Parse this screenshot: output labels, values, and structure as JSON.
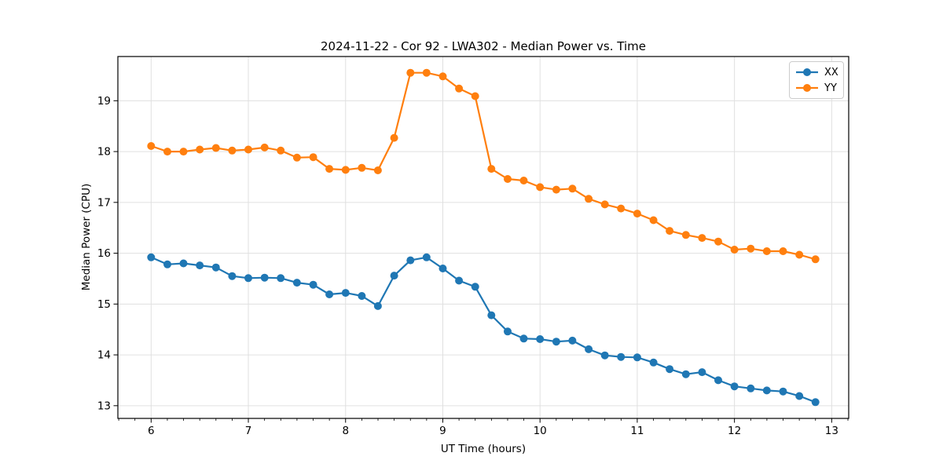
{
  "chart_data": {
    "type": "line",
    "title": "2024-11-22 - Cor 92 - LWA302 - Median Power vs. Time",
    "xlabel": "UT Time (hours)",
    "ylabel": "Median Power (CPU)",
    "xlim": [
      5.658,
      13.175
    ],
    "ylim": [
      12.75,
      19.87
    ],
    "x_ticks": [
      6,
      7,
      8,
      9,
      10,
      11,
      12,
      13
    ],
    "y_ticks": [
      13,
      14,
      15,
      16,
      17,
      18,
      19
    ],
    "x_minor_step": 0.16667,
    "grid": true,
    "grid_color": "#e0e0e0",
    "spine_color": "#000000",
    "legend_position": "upper-right",
    "marker": "circle",
    "x": [
      6.0,
      6.167,
      6.333,
      6.5,
      6.667,
      6.833,
      7.0,
      7.167,
      7.333,
      7.5,
      7.667,
      7.833,
      8.0,
      8.167,
      8.333,
      8.5,
      8.667,
      8.833,
      9.0,
      9.167,
      9.333,
      9.5,
      9.667,
      9.833,
      10.0,
      10.167,
      10.333,
      10.5,
      10.667,
      10.833,
      11.0,
      11.167,
      11.333,
      11.5,
      11.667,
      11.833,
      12.0,
      12.167,
      12.333,
      12.5,
      12.667,
      12.833
    ],
    "series": [
      {
        "name": "XX",
        "color": "#1f77b4",
        "values": [
          15.92,
          15.78,
          15.8,
          15.76,
          15.72,
          15.55,
          15.51,
          15.52,
          15.51,
          15.42,
          15.38,
          15.19,
          15.22,
          15.16,
          14.96,
          15.56,
          15.86,
          15.92,
          15.7,
          15.46,
          15.34,
          14.78,
          14.46,
          14.32,
          14.31,
          14.26,
          14.28,
          14.11,
          13.99,
          13.96,
          13.95,
          13.85,
          13.72,
          13.62,
          13.66,
          13.5,
          13.38,
          13.34,
          13.3,
          13.28,
          13.19,
          13.07
        ]
      },
      {
        "name": "YY",
        "color": "#ff7f0e",
        "values": [
          18.11,
          18.0,
          18.0,
          18.04,
          18.07,
          18.02,
          18.04,
          18.08,
          18.02,
          17.88,
          17.89,
          17.66,
          17.64,
          17.68,
          17.63,
          18.27,
          19.55,
          19.55,
          19.48,
          19.24,
          19.09,
          17.66,
          17.46,
          17.43,
          17.3,
          17.25,
          17.27,
          17.07,
          16.96,
          16.88,
          16.78,
          16.65,
          16.44,
          16.36,
          16.3,
          16.23,
          16.07,
          16.09,
          16.04,
          16.04,
          15.97,
          15.88
        ]
      }
    ]
  }
}
